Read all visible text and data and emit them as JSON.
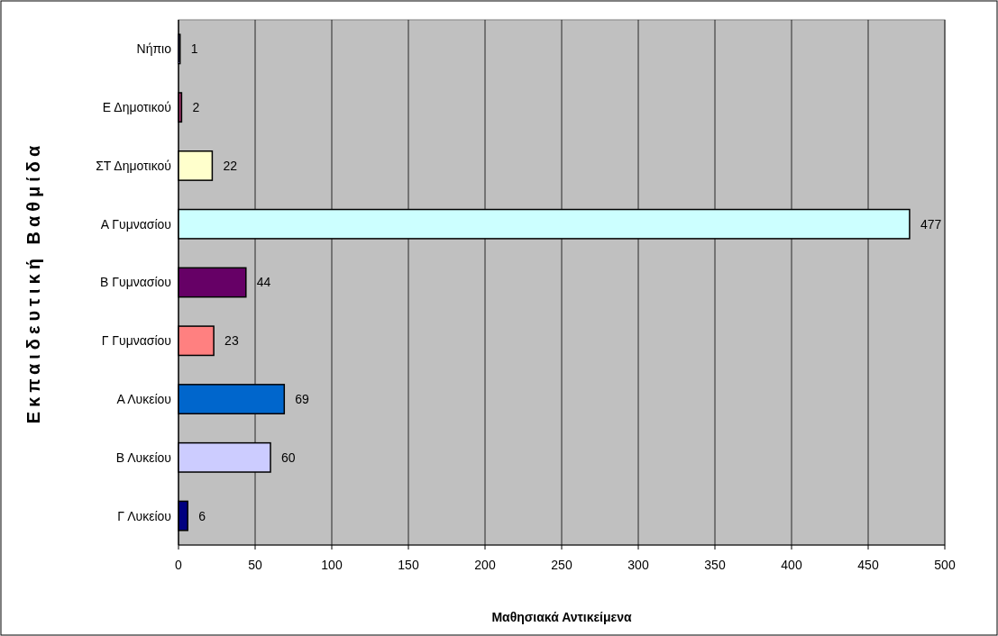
{
  "chart_data": {
    "type": "bar",
    "orientation": "horizontal",
    "xlabel": "Μαθησιακά Αντικείμενα",
    "ylabel": "Εκπαιδευτική Βαθμίδα",
    "categories": [
      "Νήπιο",
      "Ε Δημοτικού",
      "ΣΤ Δημοτικού",
      "Α Γυμνασίου",
      "Β Γυμνασίου",
      "Γ Γυμνασίου",
      "Α Λυκείου",
      "Β Λυκείου",
      "Γ Λυκείου"
    ],
    "values": [
      1,
      2,
      22,
      477,
      44,
      23,
      69,
      60,
      6
    ],
    "colors": [
      "#9999ff",
      "#993366",
      "#ffffcc",
      "#ccffff",
      "#660066",
      "#ff8080",
      "#0066cc",
      "#ccccff",
      "#000080"
    ],
    "xlim": [
      0,
      500
    ],
    "xticks": [
      0,
      50,
      100,
      150,
      200,
      250,
      300,
      350,
      400,
      450,
      500
    ],
    "grid": "x",
    "data_labels": true
  }
}
